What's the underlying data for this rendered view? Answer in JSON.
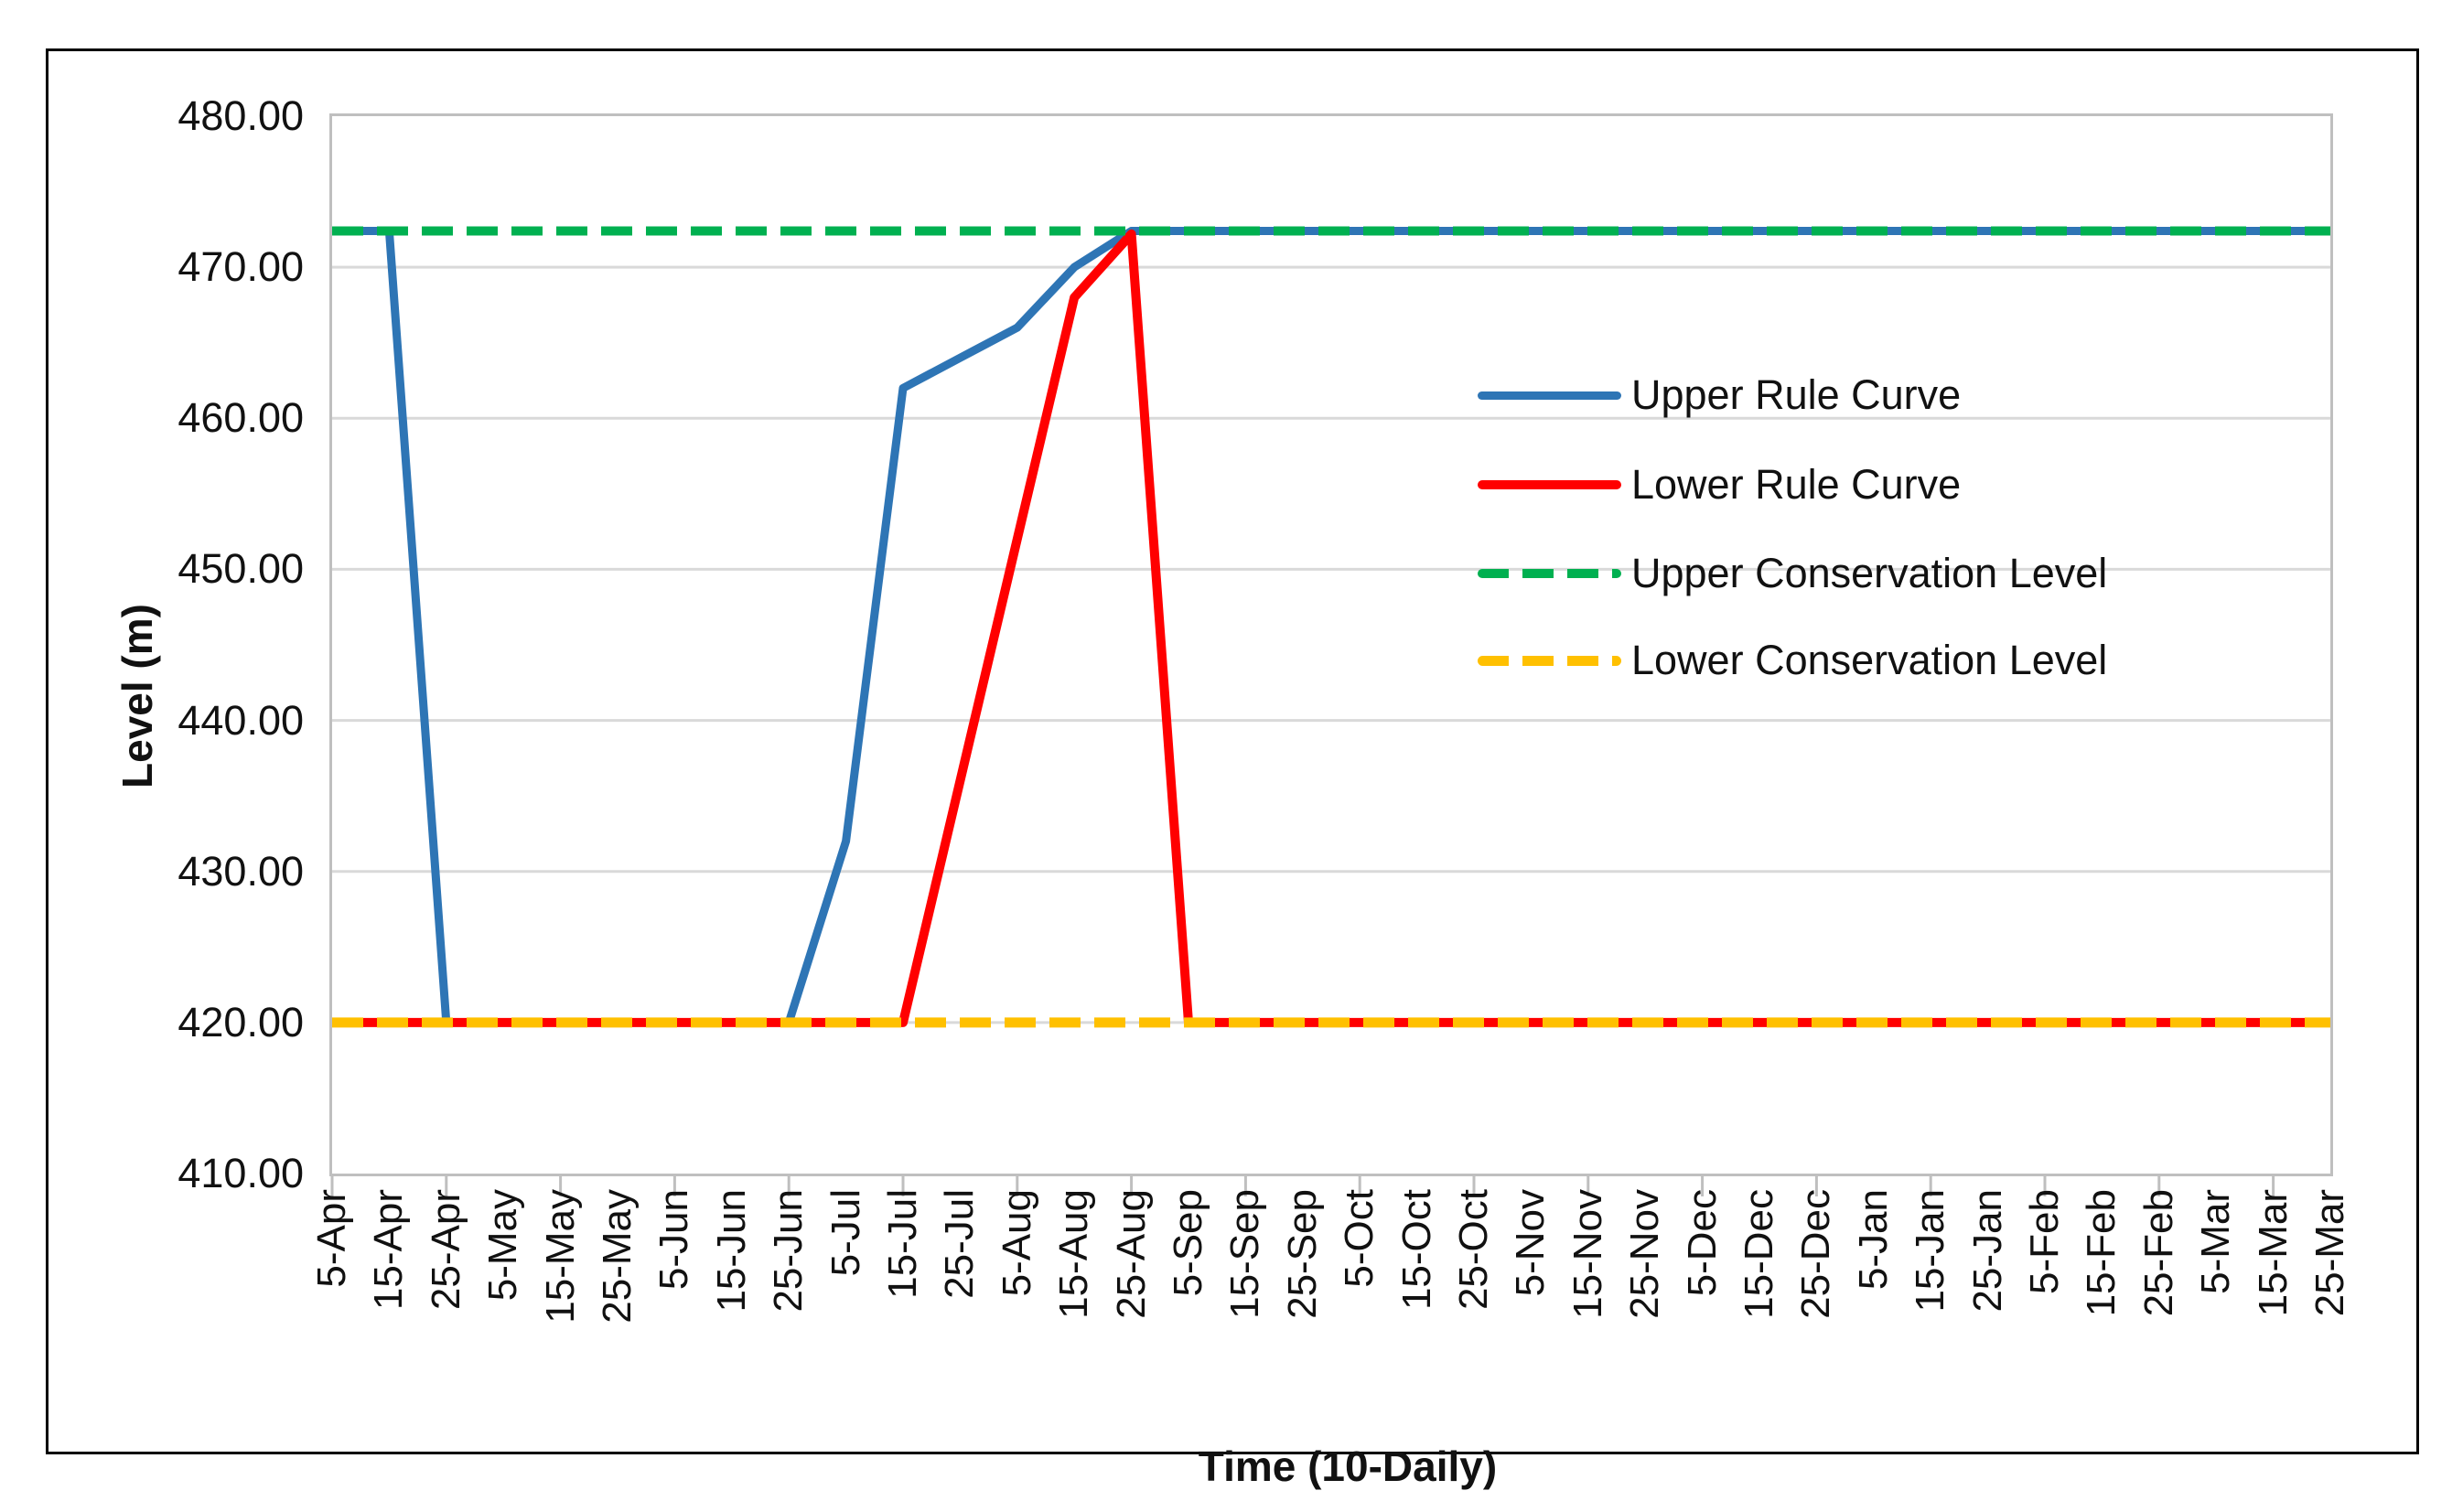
{
  "figure": {
    "background": "#ffffff",
    "frame_color": "#000000"
  },
  "chart_data": {
    "type": "line",
    "xlabel": "Time (10-Daily)",
    "ylabel": "Level (m)",
    "ylim": [
      410,
      480
    ],
    "ytick_step": 10,
    "ytick_labels": [
      "480.00",
      "470.00",
      "460.00",
      "450.00",
      "440.00",
      "430.00",
      "420.00",
      "410.00"
    ],
    "grid": true,
    "gridline_color": "#d9d9d9",
    "axis_line_color": "#bfbfbf",
    "tick_color": "#bfbfbf",
    "legend_position": "right-center-inside",
    "categories": [
      "5-Apr",
      "15-Apr",
      "25-Apr",
      "5-May",
      "15-May",
      "25-May",
      "5-Jun",
      "15-Jun",
      "25-Jun",
      "5-Jul",
      "15-Jul",
      "25-Jul",
      "5-Aug",
      "15-Aug",
      "25-Aug",
      "5-Sep",
      "15-Sep",
      "25-Sep",
      "5-Oct",
      "15-Oct",
      "25-Oct",
      "5-Nov",
      "15-Nov",
      "25-Nov",
      "5-Dec",
      "15-Dec",
      "25-Dec",
      "5-Jan",
      "15-Jan",
      "25-Jan",
      "5-Feb",
      "15-Feb",
      "25-Feb",
      "5-Mar",
      "15-Mar",
      "25-Mar"
    ],
    "series": [
      {
        "name": "Upper Rule Curve",
        "color": "#2e75b5",
        "style": "solid",
        "stroke_width": 9,
        "values": [
          472.4,
          472.4,
          420,
          420,
          420,
          420,
          420,
          420,
          420,
          432,
          462,
          464,
          466,
          470,
          472.4,
          472.4,
          472.4,
          472.4,
          472.4,
          472.4,
          472.4,
          472.4,
          472.4,
          472.4,
          472.4,
          472.4,
          472.4,
          472.4,
          472.4,
          472.4,
          472.4,
          472.4,
          472.4,
          472.4,
          472.4,
          472.4
        ]
      },
      {
        "name": "Lower Rule Curve",
        "color": "#ff0000",
        "style": "solid",
        "stroke_width": 10,
        "values": [
          420,
          420,
          420,
          420,
          420,
          420,
          420,
          420,
          420,
          420,
          420,
          436,
          452,
          468,
          472.2,
          420,
          420,
          420,
          420,
          420,
          420,
          420,
          420,
          420,
          420,
          420,
          420,
          420,
          420,
          420,
          420,
          420,
          420,
          420,
          420,
          420
        ]
      },
      {
        "name": "Upper Conservation Level",
        "color": "#00b050",
        "style": "dashed",
        "stroke_width": 10,
        "values": [
          472.4,
          472.4,
          472.4,
          472.4,
          472.4,
          472.4,
          472.4,
          472.4,
          472.4,
          472.4,
          472.4,
          472.4,
          472.4,
          472.4,
          472.4,
          472.4,
          472.4,
          472.4,
          472.4,
          472.4,
          472.4,
          472.4,
          472.4,
          472.4,
          472.4,
          472.4,
          472.4,
          472.4,
          472.4,
          472.4,
          472.4,
          472.4,
          472.4,
          472.4,
          472.4,
          472.4
        ]
      },
      {
        "name": "Lower Conservation Level",
        "color": "#ffc000",
        "style": "dashed",
        "stroke_width": 11,
        "values": [
          420,
          420,
          420,
          420,
          420,
          420,
          420,
          420,
          420,
          420,
          420,
          420,
          420,
          420,
          420,
          420,
          420,
          420,
          420,
          420,
          420,
          420,
          420,
          420,
          420,
          420,
          420,
          420,
          420,
          420,
          420,
          420,
          420,
          420,
          420,
          420
        ]
      }
    ]
  }
}
